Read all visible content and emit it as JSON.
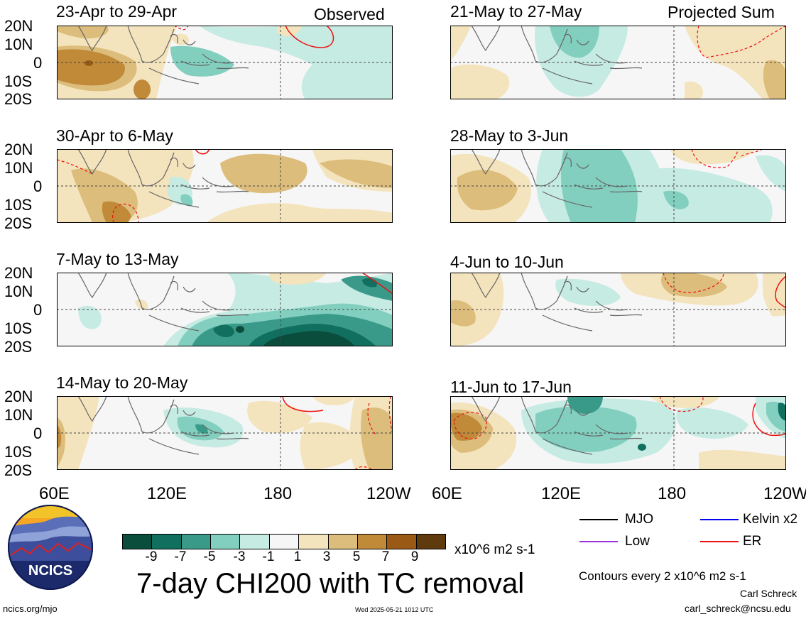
{
  "corner_labels": {
    "left": "Observed",
    "right": "Projected Sum"
  },
  "panels": [
    {
      "title": "23-Apr to 29-Apr"
    },
    {
      "title": "30-Apr to 6-May"
    },
    {
      "title": "7-May to 13-May"
    },
    {
      "title": "14-May to 20-May"
    },
    {
      "title": "21-May to 27-May"
    },
    {
      "title": "28-May to 3-Jun"
    },
    {
      "title": "4-Jun to 10-Jun"
    },
    {
      "title": "11-Jun to 17-Jun"
    }
  ],
  "lat_labels": [
    "20N",
    "10N",
    "0",
    "10S",
    "20S"
  ],
  "lon_labels": [
    "60E",
    "120E",
    "180",
    "120W"
  ],
  "legend": {
    "mjo": "MJO",
    "kelvin": "Kelvin x2",
    "low": "Low",
    "er": "ER",
    "colors": {
      "mjo": "#000000",
      "kelvin": "#0000ee",
      "low": "#9933dd",
      "er": "#ee1111"
    }
  },
  "colorbar": {
    "ticks": [
      "-9",
      "-7",
      "-5",
      "-3",
      "-1",
      "1",
      "3",
      "5",
      "7",
      "9"
    ],
    "units": "x10^6 m2 s-1",
    "colors": [
      "#0b4d3c",
      "#106f5f",
      "#3a9a8a",
      "#82cfc0",
      "#c6ebe3",
      "#f6f6f6",
      "#f4e4bd",
      "#dcbd7b",
      "#c08a38",
      "#9a5a16",
      "#5e3a0d"
    ]
  },
  "title": "7-day CHI200 with TC removal",
  "contour_note": "Contours every 2 x10^6 m2 s-1",
  "author": "Carl Schreck",
  "email": "carl_schreck@ncsu.edu",
  "site": "ncics.org/mjo",
  "timestamp": "Wed 2025-05-21 1012 UTC",
  "logo_text": "NCICS"
}
